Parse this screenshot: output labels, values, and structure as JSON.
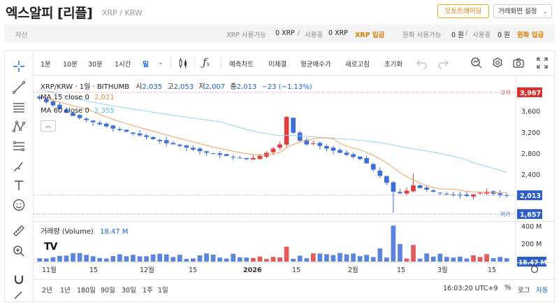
{
  "header": {
    "title": "엑스알피 [리플]",
    "pair": "XRP / KRW",
    "auto_trade_label": "오토트레이딩",
    "settings_label": "거래화면 설정"
  },
  "balance": {
    "asset_label": "자산",
    "xrp_avail_label": "XRP 사용가능",
    "xrp_avail_value": "0 XRP",
    "slash1": "/",
    "xrp_used_label": "사용중",
    "xrp_used_value": "0 XRP",
    "xrp_deposit_label": "XRP 입금",
    "krw_avail_label": "원화 사용가능",
    "krw_avail_value": "0 원",
    "slash2": "/",
    "krw_used_label": "사용중",
    "krw_used_value": "0 원",
    "krw_deposit_label": "원화 입금"
  },
  "toolbar": {
    "intervals": [
      "1분",
      "10분",
      "30분",
      "1시간",
      "일"
    ],
    "selected_interval": "일",
    "forecast_label": "예측차트",
    "unfilled_label": "미체결",
    "avg_price_label": "평균매수가",
    "refresh_label": "새로고침",
    "reset_label": "초기화"
  },
  "legend": {
    "symbol": "XRP/KRW · 1일 · BITHUMB",
    "open_label": "시",
    "open": "2,035",
    "high_label": "고",
    "high": "2,053",
    "low_label": "저",
    "low": "2,007",
    "close_label": "종",
    "close": "2,013",
    "change": "−23 (−1.13%)",
    "ma15_label": "MA 15 close 0",
    "ma15_value": "2,021",
    "ma60_label": "MA 60 close 0",
    "ma60_value": "2,355"
  },
  "volume": {
    "title": "거래량 (Volume)",
    "value": "18.47 M"
  },
  "price_axis": {
    "ticks": [
      "3,600",
      "3,200",
      "2,800",
      "2,400",
      "2,000"
    ],
    "high_label": "고가",
    "high_value": "3,967",
    "low_label": "저가",
    "low_value": "1,657",
    "current_value": "2,013"
  },
  "volume_axis": {
    "ticks": [
      "400 M",
      "200 M"
    ],
    "current_value": "18.47 M"
  },
  "time_axis": [
    "11월",
    "15",
    "12월",
    "15",
    "2026",
    "15",
    "2월",
    "15",
    "3월",
    "15"
  ],
  "ranges": [
    "2년",
    "1년",
    "180일",
    "90일",
    "30일",
    "1주",
    "1일"
  ],
  "clock": "16:03:20 UTC+9",
  "scale": {
    "pct": "%",
    "log": "로그",
    "auto": "자동"
  },
  "colors": {
    "up": "#e03e3e",
    "down": "#3d6fd8",
    "ma15": "#f4a261",
    "ma60": "#8fd3f4",
    "accent": "#1763d1",
    "orange": "#e07b00"
  },
  "chart_data": {
    "type": "candlestick",
    "ohlc_sample_closes": [
      3850,
      3780,
      3720,
      3650,
      3580,
      3520,
      3480,
      3440,
      3400,
      3360,
      3320,
      3280,
      3250,
      3220,
      3180,
      3150,
      3120,
      3080,
      3040,
      3000,
      2980,
      2950,
      2920,
      2880,
      2850,
      2820,
      2800,
      2780,
      2760,
      2740,
      2720,
      2700,
      2720,
      2760,
      2820,
      2900,
      2980,
      3500,
      3200,
      3050,
      2980,
      3000,
      2950,
      2900,
      2860,
      2820,
      2780,
      2740,
      2700,
      2620,
      2500,
      2380,
      2250,
      2080,
      2050,
      2100,
      2200,
      2150,
      2120,
      2080,
      2060,
      2040,
      2020,
      2010,
      2000,
      2030,
      2060,
      2080,
      2040,
      2020,
      2013
    ],
    "y_range": [
      1550,
      4100
    ],
    "volume_range": [
      0,
      430
    ]
  }
}
